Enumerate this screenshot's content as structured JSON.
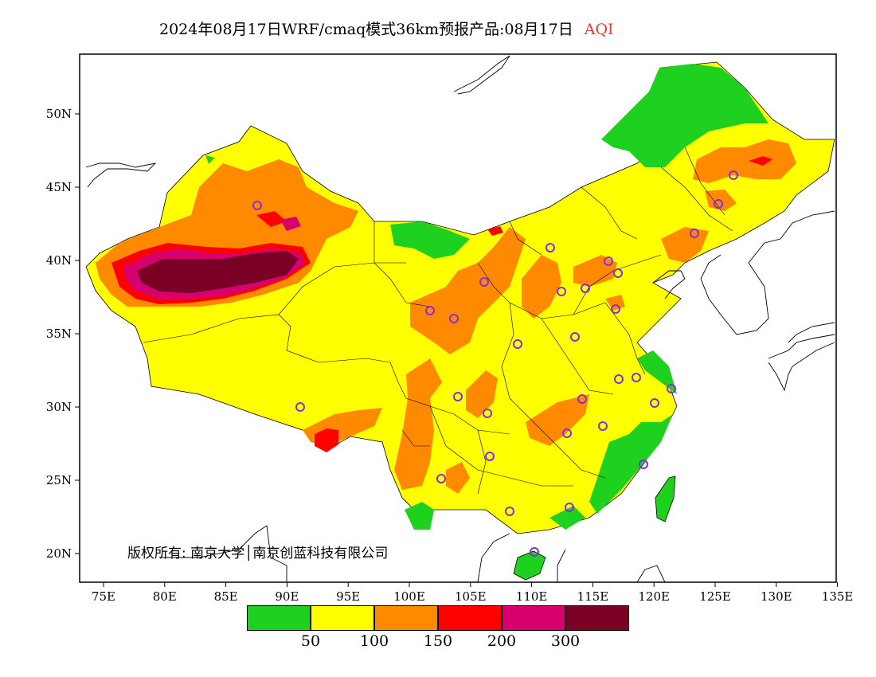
{
  "title": {
    "main": "2024年08月17日WRF/cmaq模式36km预报产品:08月17日",
    "product": "AQI"
  },
  "axes": {
    "lon_labels": [
      "75E",
      "80E",
      "85E",
      "90E",
      "95E",
      "100E",
      "105E",
      "110E",
      "115E",
      "120E",
      "125E",
      "130E",
      "135E"
    ],
    "lat_labels": [
      "50N",
      "45N",
      "40N",
      "35N",
      "30N",
      "25N",
      "20N"
    ]
  },
  "copyright": "版权所有: 南京大学│南京创蓝科技有限公司",
  "legend": {
    "colors": [
      "#1fd11f",
      "#ffff00",
      "#ff8a00",
      "#ff0000",
      "#d6006f",
      "#7a0025"
    ],
    "labels": [
      "50",
      "100",
      "150",
      "200",
      "300"
    ]
  },
  "colors": {
    "good": "#1fd11f",
    "moderate": "#ffff00",
    "sensitive": "#ff8a00",
    "unhealthy": "#ff0000",
    "very_unhealthy": "#d6006f",
    "hazardous": "#7a0025",
    "station_marker": "#8a2be2"
  }
}
